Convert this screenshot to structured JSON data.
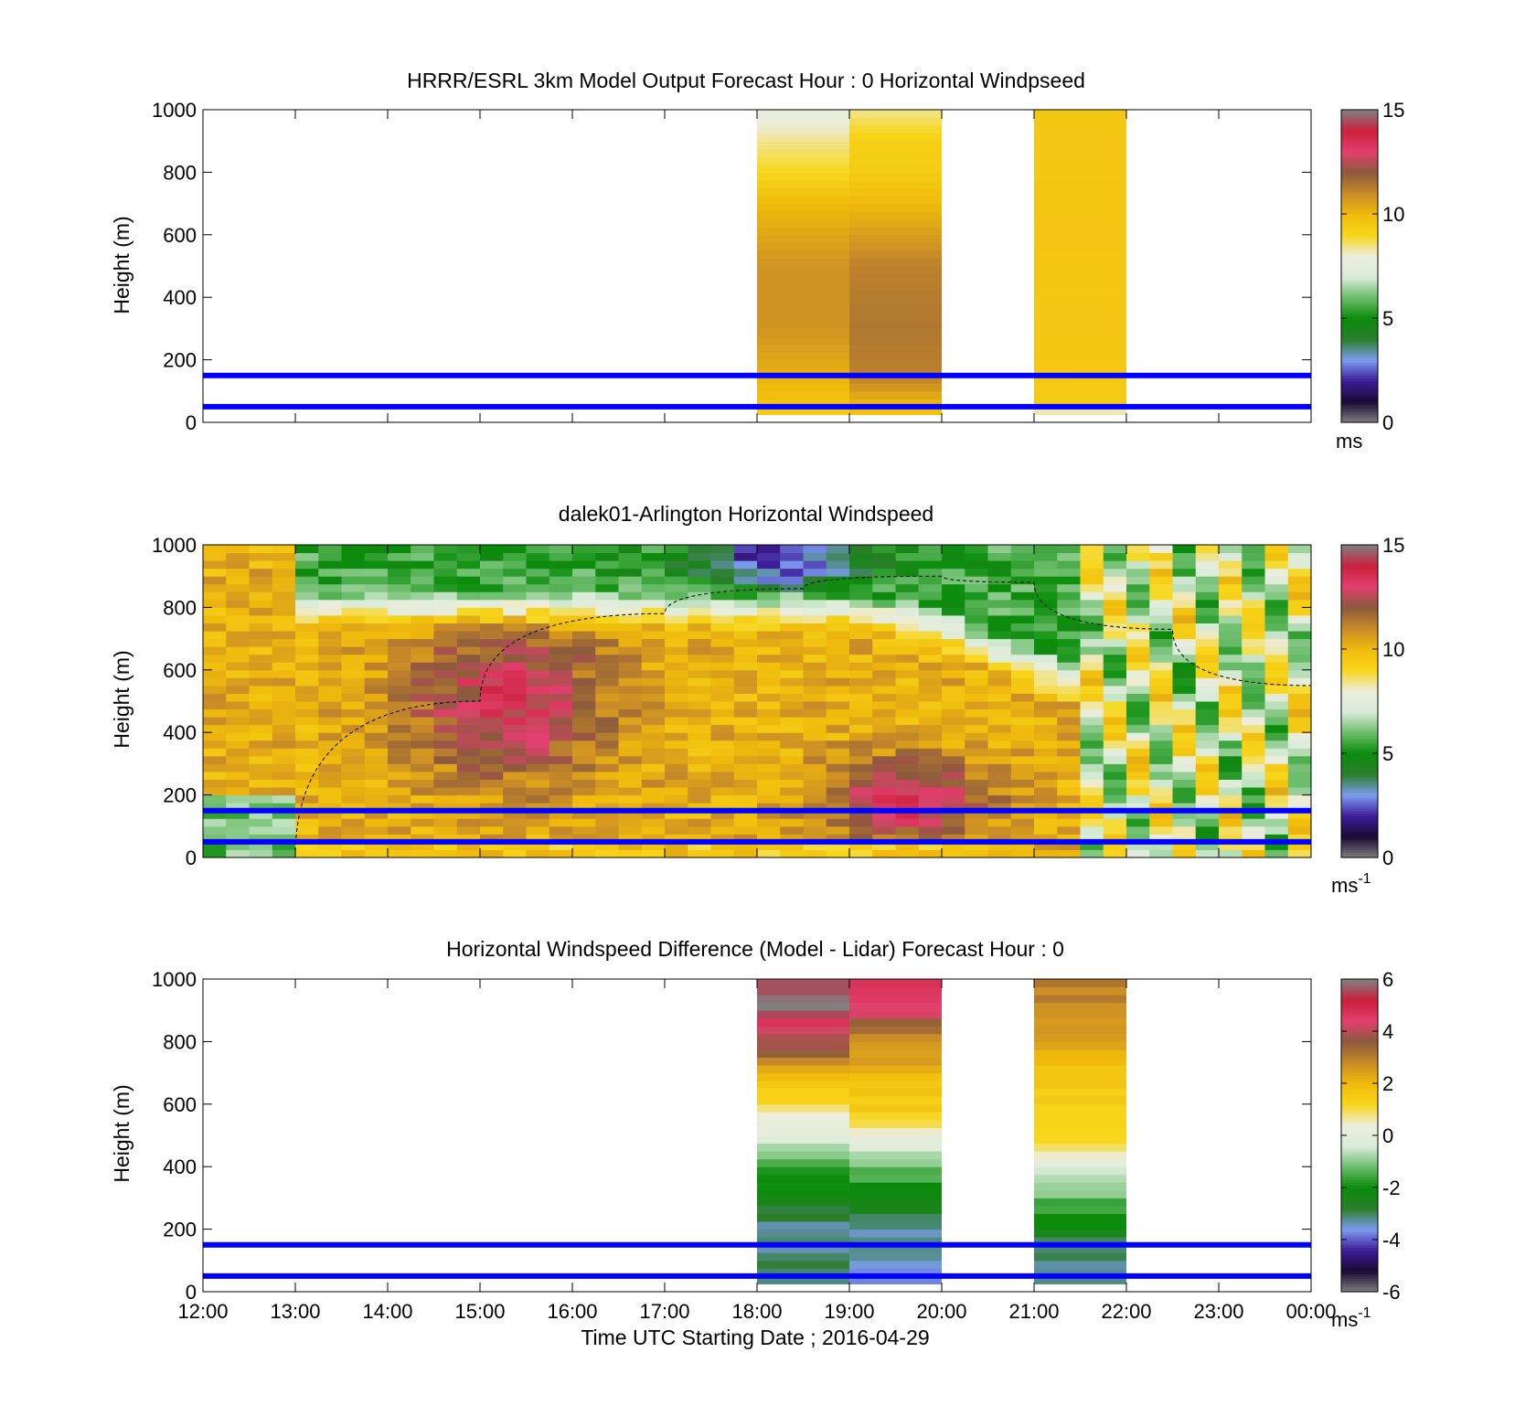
{
  "figure": {
    "xlabel": "Time UTC  Starting Date ; 2016-04-29",
    "x_ticks": [
      "12:00",
      "13:00",
      "14:00",
      "15:00",
      "16:00",
      "17:00",
      "18:00",
      "19:00",
      "20:00",
      "21:00",
      "22:00",
      "23:00",
      "00:00"
    ]
  },
  "colormap": {
    "name": "windspeed",
    "stops": [
      "#808080",
      "#1a0a33",
      "#3d1c99",
      "#7c9cf0",
      "#2a7e2a",
      "#0a8c0a",
      "#6cbd6c",
      "#d9ecd9",
      "#ededdc",
      "#f7d61a",
      "#f0ba0c",
      "#c88a28",
      "#8b5a3c",
      "#e2406e",
      "#cc1f3c",
      "#808080"
    ]
  },
  "chart_data": [
    {
      "type": "heatmap",
      "title": "HRRR/ESRL 3km Model Output   Forecast Hour : 0 Horizontal Windpseed",
      "ylabel": "Height (m)",
      "xlim": [
        "12:00",
        "00:00"
      ],
      "ylim": [
        0,
        1000
      ],
      "y_ticks": [
        "0",
        "200",
        "400",
        "600",
        "800",
        "1000"
      ],
      "colorbar": {
        "range": [
          0,
          15
        ],
        "ticks": [
          "0",
          "5",
          "10",
          "15"
        ],
        "unit": "ms",
        "unit_sup": ""
      },
      "reference_lines_m": [
        50,
        150
      ],
      "columns": [
        {
          "start": "18:00",
          "end": "19:00",
          "bottom_m": 25,
          "top_m": 1000,
          "profile": [
            [
              25,
              8.6
            ],
            [
              40,
              9.5
            ],
            [
              150,
              10.2
            ],
            [
              300,
              10.8
            ],
            [
              500,
              10.8
            ],
            [
              700,
              10.0
            ],
            [
              800,
              9.0
            ],
            [
              900,
              8.4
            ],
            [
              1000,
              7.6
            ]
          ]
        },
        {
          "start": "19:00",
          "end": "20:00",
          "bottom_m": 25,
          "top_m": 1000,
          "profile": [
            [
              25,
              9.6
            ],
            [
              150,
              11.2
            ],
            [
              300,
              11.4
            ],
            [
              500,
              11.2
            ],
            [
              700,
              10.0
            ],
            [
              800,
              9.4
            ],
            [
              900,
              9.2
            ],
            [
              1000,
              8.4
            ]
          ]
        },
        {
          "start": "21:00",
          "end": "22:00",
          "bottom_m": 25,
          "top_m": 1000,
          "profile": [
            [
              25,
              7.6
            ],
            [
              60,
              9.4
            ],
            [
              200,
              9.5
            ],
            [
              600,
              9.6
            ],
            [
              1000,
              9.5
            ]
          ]
        }
      ]
    },
    {
      "type": "heatmap",
      "title": "dalek01-Arlington  Horizontal Windspeed",
      "ylabel": "Height (m)",
      "xlim": [
        "12:00",
        "00:00"
      ],
      "ylim": [
        0,
        1000
      ],
      "y_ticks": [
        "0",
        "200",
        "400",
        "600",
        "800",
        "1000"
      ],
      "colorbar": {
        "range": [
          0,
          15
        ],
        "ticks": [
          "0",
          "5",
          "10",
          "15"
        ],
        "unit": "ms",
        "unit_sup": "-1"
      },
      "reference_lines_m": [
        50,
        150
      ],
      "lidar_time_range": [
        "12:00",
        "23:50"
      ],
      "dashed_curve_points": [
        [
          "13:00",
          0
        ],
        [
          "15:00",
          500
        ],
        [
          "17:00",
          780
        ],
        [
          "18:30",
          860
        ],
        [
          "20:00",
          900
        ],
        [
          "21:00",
          880
        ],
        [
          "22:30",
          730
        ],
        [
          "00:00",
          550
        ]
      ]
    },
    {
      "type": "heatmap",
      "title": "Horizontal Windspeed Difference (Model - Lidar) Forecast Hour : 0",
      "ylabel": "Height (m)",
      "xlim": [
        "12:00",
        "00:00"
      ],
      "ylim": [
        0,
        1000
      ],
      "y_ticks": [
        "0",
        "200",
        "400",
        "600",
        "800",
        "1000"
      ],
      "colorbar": {
        "range": [
          -6,
          6
        ],
        "ticks": [
          "-6",
          "-4",
          "-2",
          "0",
          "2",
          "4",
          "6"
        ],
        "unit": "ms",
        "unit_sup": "-1"
      },
      "reference_lines_m": [
        50,
        150
      ],
      "columns": [
        {
          "start": "18:00",
          "end": "19:00",
          "bottom_m": 25,
          "top_m": 1000,
          "profile": [
            [
              25,
              -3.0
            ],
            [
              200,
              -3.2
            ],
            [
              350,
              -2.0
            ],
            [
              450,
              -1.0
            ],
            [
              520,
              0.2
            ],
            [
              600,
              1.0
            ],
            [
              700,
              2.2
            ],
            [
              780,
              3.6
            ],
            [
              850,
              4.4
            ],
            [
              900,
              6.0
            ],
            [
              950,
              6.0
            ],
            [
              1000,
              5.2
            ]
          ]
        },
        {
          "start": "19:00",
          "end": "20:00",
          "bottom_m": 25,
          "top_m": 1000,
          "profile": [
            [
              25,
              -3.6
            ],
            [
              200,
              -3.2
            ],
            [
              400,
              -1.2
            ],
            [
              470,
              0.0
            ],
            [
              550,
              1.2
            ],
            [
              700,
              2.0
            ],
            [
              800,
              2.8
            ],
            [
              850,
              3.4
            ],
            [
              900,
              4.4
            ],
            [
              1000,
              4.6
            ]
          ]
        },
        {
          "start": "21:00",
          "end": "22:00",
          "bottom_m": 25,
          "top_m": 1000,
          "profile": [
            [
              25,
              -3.2
            ],
            [
              150,
              -3.0
            ],
            [
              250,
              -1.8
            ],
            [
              350,
              -0.8
            ],
            [
              420,
              0.2
            ],
            [
              500,
              1.2
            ],
            [
              700,
              1.8
            ],
            [
              850,
              2.6
            ],
            [
              1000,
              3.0
            ]
          ]
        }
      ]
    }
  ]
}
